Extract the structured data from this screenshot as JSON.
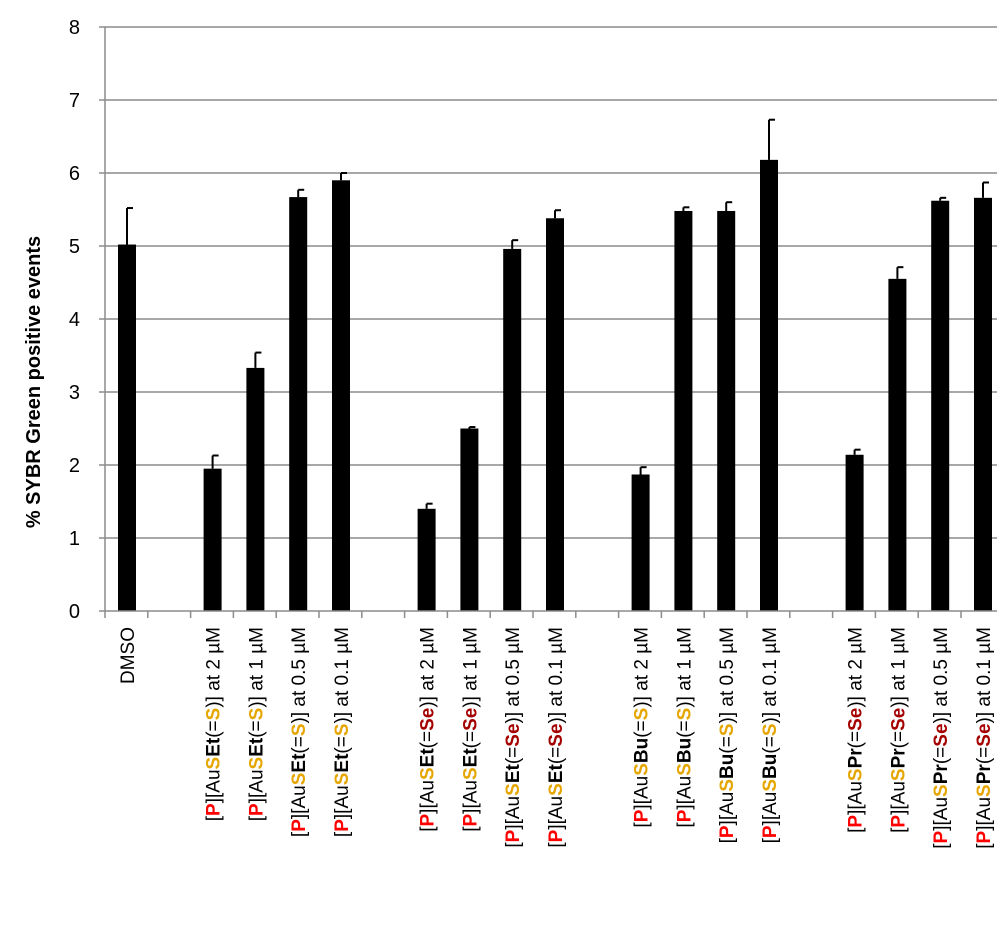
{
  "colors": {
    "bar": "#000000",
    "grid": "#8c8c8c",
    "red": "#ff0000",
    "gold": "#e6a600",
    "darkred": "#a50000"
  },
  "chart_data": {
    "type": "bar",
    "title": "",
    "xlabel": "",
    "ylabel": "% SYBR Green positive events",
    "ylim": [
      0,
      8
    ],
    "yticks": [
      0,
      1,
      2,
      3,
      4,
      5,
      6,
      7,
      8
    ],
    "grid": true,
    "legend": "none",
    "categories": [
      "DMSO",
      "",
      "[P][AuSEt(=S)] at 2 µM",
      "[P][AuSEt(=S)] at 1 µM",
      "[P][AuSEt(=S)] at 0.5 µM",
      "[P][AuSEt(=S)] at 0.1 µM",
      "",
      "[P][AuSEt(=Se)] at 2 µM",
      "[P][AuSEt(=Se)] at 1 µM",
      "[P][AuSEt(=Se)] at 0.5 µM",
      "[P][AuSEt(=Se)] at 0.1 µM",
      "",
      "[P][AuSBu(=S)] at 2 µM",
      "[P][AuSBu(=S)] at 1 µM",
      "[P][AuSBu(=S)] at 0.5 µM",
      "[P][AuSBu(=S)] at 0.1 µM",
      "",
      "[P][AuSPr(=Se)] at 2 µM",
      "[P][AuSPr(=Se)] at 1 µM",
      "[P][AuSPr(=Se)] at 0.5 µM",
      "[P][AuSPr(=Se)] at 0.1 µM"
    ],
    "label_segments": [
      [
        {
          "t": "DMSO",
          "s": ""
        }
      ],
      [],
      [
        {
          "t": "[",
          "s": ""
        },
        {
          "t": "P",
          "s": "red"
        },
        {
          "t": "][Au",
          "s": ""
        },
        {
          "t": "S",
          "s": "gold"
        },
        {
          "t": "Et",
          "s": "bold"
        },
        {
          "t": "(=",
          "s": ""
        },
        {
          "t": "S",
          "s": "gold"
        },
        {
          "t": ")] at 2 µM",
          "s": ""
        }
      ],
      [
        {
          "t": "[",
          "s": ""
        },
        {
          "t": "P",
          "s": "red"
        },
        {
          "t": "][Au",
          "s": ""
        },
        {
          "t": "S",
          "s": "gold"
        },
        {
          "t": "Et",
          "s": "bold"
        },
        {
          "t": "(=",
          "s": ""
        },
        {
          "t": "S",
          "s": "gold"
        },
        {
          "t": ")] at 1 µM",
          "s": ""
        }
      ],
      [
        {
          "t": "[",
          "s": ""
        },
        {
          "t": "P",
          "s": "red"
        },
        {
          "t": "][Au",
          "s": ""
        },
        {
          "t": "S",
          "s": "gold"
        },
        {
          "t": "Et",
          "s": "bold"
        },
        {
          "t": "(=",
          "s": ""
        },
        {
          "t": "S",
          "s": "gold"
        },
        {
          "t": ")] at 0.5 µM",
          "s": ""
        }
      ],
      [
        {
          "t": "[",
          "s": ""
        },
        {
          "t": "P",
          "s": "red"
        },
        {
          "t": "][Au",
          "s": ""
        },
        {
          "t": "S",
          "s": "gold"
        },
        {
          "t": "Et",
          "s": "bold"
        },
        {
          "t": "(=",
          "s": ""
        },
        {
          "t": "S",
          "s": "gold"
        },
        {
          "t": ")] at 0.1 µM",
          "s": ""
        }
      ],
      [],
      [
        {
          "t": "[",
          "s": ""
        },
        {
          "t": "P",
          "s": "red"
        },
        {
          "t": "][Au",
          "s": ""
        },
        {
          "t": "S",
          "s": "gold"
        },
        {
          "t": "Et",
          "s": "bold"
        },
        {
          "t": "(=",
          "s": ""
        },
        {
          "t": "Se",
          "s": "darkred"
        },
        {
          "t": ")] at 2 µM",
          "s": ""
        }
      ],
      [
        {
          "t": "[",
          "s": ""
        },
        {
          "t": "P",
          "s": "red"
        },
        {
          "t": "][Au",
          "s": ""
        },
        {
          "t": "S",
          "s": "gold"
        },
        {
          "t": "Et",
          "s": "bold"
        },
        {
          "t": "(=",
          "s": ""
        },
        {
          "t": "Se",
          "s": "darkred"
        },
        {
          "t": ")] at 1 µM",
          "s": ""
        }
      ],
      [
        {
          "t": "[",
          "s": ""
        },
        {
          "t": "P",
          "s": "red"
        },
        {
          "t": "][Au",
          "s": ""
        },
        {
          "t": "S",
          "s": "gold"
        },
        {
          "t": "Et",
          "s": "bold"
        },
        {
          "t": "(=",
          "s": ""
        },
        {
          "t": "Se",
          "s": "darkred"
        },
        {
          "t": ")] at 0.5 µM",
          "s": ""
        }
      ],
      [
        {
          "t": "[",
          "s": ""
        },
        {
          "t": "P",
          "s": "red"
        },
        {
          "t": "][Au",
          "s": ""
        },
        {
          "t": "S",
          "s": "gold"
        },
        {
          "t": "Et",
          "s": "bold"
        },
        {
          "t": "(=",
          "s": ""
        },
        {
          "t": "Se",
          "s": "darkred"
        },
        {
          "t": ")] at 0.1 µM",
          "s": ""
        }
      ],
      [],
      [
        {
          "t": "[",
          "s": ""
        },
        {
          "t": "P",
          "s": "red"
        },
        {
          "t": "][Au",
          "s": ""
        },
        {
          "t": "S",
          "s": "gold"
        },
        {
          "t": "Bu",
          "s": "bold"
        },
        {
          "t": "(=",
          "s": ""
        },
        {
          "t": "S",
          "s": "gold"
        },
        {
          "t": ")] at 2 µM",
          "s": ""
        }
      ],
      [
        {
          "t": "[",
          "s": ""
        },
        {
          "t": "P",
          "s": "red"
        },
        {
          "t": "][Au",
          "s": ""
        },
        {
          "t": "S",
          "s": "gold"
        },
        {
          "t": "Bu",
          "s": "bold"
        },
        {
          "t": "(=",
          "s": ""
        },
        {
          "t": "S",
          "s": "gold"
        },
        {
          "t": ")] at 1 µM",
          "s": ""
        }
      ],
      [
        {
          "t": "[",
          "s": ""
        },
        {
          "t": "P",
          "s": "red"
        },
        {
          "t": "][Au",
          "s": ""
        },
        {
          "t": "S",
          "s": "gold"
        },
        {
          "t": "Bu",
          "s": "bold"
        },
        {
          "t": "(=",
          "s": ""
        },
        {
          "t": "S",
          "s": "gold"
        },
        {
          "t": ")] at 0.5 µM",
          "s": ""
        }
      ],
      [
        {
          "t": "[",
          "s": ""
        },
        {
          "t": "P",
          "s": "red"
        },
        {
          "t": "][Au",
          "s": ""
        },
        {
          "t": "S",
          "s": "gold"
        },
        {
          "t": "Bu",
          "s": "bold"
        },
        {
          "t": "(=",
          "s": ""
        },
        {
          "t": "S",
          "s": "gold"
        },
        {
          "t": ")] at 0.1 µM",
          "s": ""
        }
      ],
      [],
      [
        {
          "t": "[",
          "s": ""
        },
        {
          "t": "P",
          "s": "red"
        },
        {
          "t": "][Au",
          "s": ""
        },
        {
          "t": "S",
          "s": "gold"
        },
        {
          "t": "Pr",
          "s": "bold"
        },
        {
          "t": "(=",
          "s": ""
        },
        {
          "t": "Se",
          "s": "darkred"
        },
        {
          "t": ")] at 2 µM",
          "s": ""
        }
      ],
      [
        {
          "t": "[",
          "s": ""
        },
        {
          "t": "P",
          "s": "red"
        },
        {
          "t": "][Au",
          "s": ""
        },
        {
          "t": "S",
          "s": "gold"
        },
        {
          "t": "Pr",
          "s": "bold"
        },
        {
          "t": "(=",
          "s": ""
        },
        {
          "t": "Se",
          "s": "darkred"
        },
        {
          "t": ")] at 1 µM",
          "s": ""
        }
      ],
      [
        {
          "t": "[",
          "s": ""
        },
        {
          "t": "P",
          "s": "red"
        },
        {
          "t": "][Au",
          "s": ""
        },
        {
          "t": "S",
          "s": "gold"
        },
        {
          "t": "Pr",
          "s": "bold"
        },
        {
          "t": "(=",
          "s": ""
        },
        {
          "t": "Se",
          "s": "darkred"
        },
        {
          "t": ")] at 0.5 µM",
          "s": ""
        }
      ],
      [
        {
          "t": "[",
          "s": ""
        },
        {
          "t": "P",
          "s": "red"
        },
        {
          "t": "][Au",
          "s": ""
        },
        {
          "t": "S",
          "s": "gold"
        },
        {
          "t": "Pr",
          "s": "bold"
        },
        {
          "t": "(=",
          "s": ""
        },
        {
          "t": "Se",
          "s": "darkred"
        },
        {
          "t": ")] at 0.1 µM",
          "s": ""
        }
      ]
    ],
    "series": [
      {
        "values": [
          5.02,
          null,
          1.95,
          3.33,
          5.67,
          5.9,
          null,
          1.4,
          2.5,
          4.96,
          5.38,
          null,
          1.87,
          5.48,
          5.48,
          6.18,
          null,
          2.14,
          4.55,
          5.62,
          5.66
        ],
        "error": [
          0.5,
          null,
          0.18,
          0.21,
          0.1,
          0.1,
          null,
          0.07,
          0.02,
          0.12,
          0.11,
          null,
          0.1,
          0.05,
          0.12,
          0.55,
          null,
          0.07,
          0.16,
          0.04,
          0.21
        ]
      }
    ]
  }
}
